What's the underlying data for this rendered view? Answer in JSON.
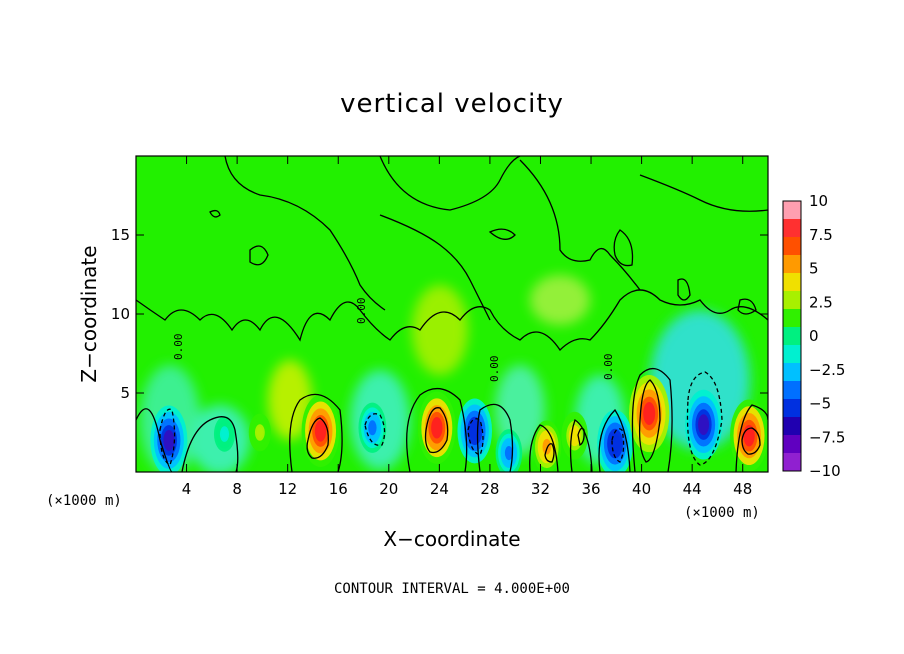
{
  "chart_data": {
    "type": "heatmap",
    "title": "vertical velocity",
    "xlabel": "X−coordinate",
    "ylabel": "Z−coordinate",
    "x_unit_label": "(×1000 m)",
    "x_ticks": [
      "4",
      "8",
      "12",
      "16",
      "20",
      "24",
      "28",
      "32",
      "36",
      "40",
      "44",
      "48"
    ],
    "x_tick_values": [
      4,
      8,
      12,
      16,
      20,
      24,
      28,
      32,
      36,
      40,
      44,
      48
    ],
    "y_ticks": [
      "5",
      "10",
      "15"
    ],
    "y_tick_values": [
      5,
      10,
      15
    ],
    "xlim": [
      0,
      50
    ],
    "ylim": [
      0,
      20
    ],
    "colorbar": {
      "labels": [
        "10",
        "7.5",
        "5",
        "2.5",
        "0",
        "−2.5",
        "−5",
        "−7.5",
        "−10"
      ],
      "values": [
        10,
        7.5,
        5,
        2.5,
        0,
        -2.5,
        -5,
        -7.5,
        -10
      ],
      "colors": [
        "#ff9fb0",
        "#ff3030",
        "#ff5000",
        "#ff9a00",
        "#f0e000",
        "#a8f000",
        "#30f000",
        "#00f080",
        "#00f0d0",
        "#00c0ff",
        "#0070ff",
        "#0030e0",
        "#2000b0",
        "#6000c0",
        "#9020d0"
      ]
    },
    "cells": [
      {
        "x": 2.6,
        "z": 2.0,
        "w": -8.5
      },
      {
        "x": 7.0,
        "z": 2.4,
        "w": -1.5
      },
      {
        "x": 9.8,
        "z": 2.5,
        "w": 2.0
      },
      {
        "x": 14.6,
        "z": 2.6,
        "w": 9.0
      },
      {
        "x": 18.7,
        "z": 2.8,
        "w": -4.5
      },
      {
        "x": 23.8,
        "z": 2.8,
        "w": 9.0
      },
      {
        "x": 26.8,
        "z": 2.6,
        "w": -7.5
      },
      {
        "x": 29.5,
        "z": 1.2,
        "w": -4.0
      },
      {
        "x": 32.5,
        "z": 1.6,
        "w": 5.0
      },
      {
        "x": 34.7,
        "z": 2.3,
        "w": 4.0
      },
      {
        "x": 37.9,
        "z": 1.8,
        "w": -8.0
      },
      {
        "x": 40.6,
        "z": 3.7,
        "w": 10.0
      },
      {
        "x": 44.9,
        "z": 3.0,
        "w": -8.5
      },
      {
        "x": 48.5,
        "z": 2.3,
        "w": 9.0
      }
    ],
    "contour_interval_label": "CONTOUR INTERVAL = 4.000E+00",
    "contour_labels": [
      "0.00",
      "0.00",
      "0.00",
      "0.00"
    ],
    "grid": false
  }
}
